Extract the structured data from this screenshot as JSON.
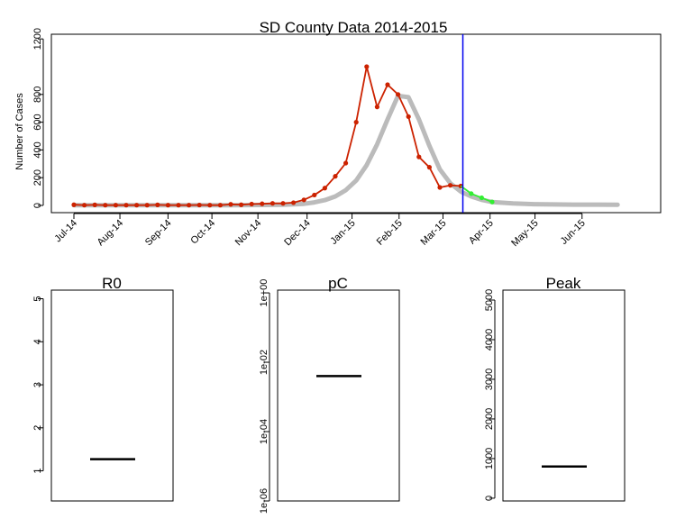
{
  "chart_data": [
    {
      "type": "line",
      "title": "SD County Data 2014-2015",
      "ylabel": "Number of Cases",
      "xlabel": "",
      "ylim": [
        0,
        1200
      ],
      "yticks": [
        0,
        200,
        400,
        600,
        800,
        1200
      ],
      "xticks": [
        "Jul-14",
        "Aug-14",
        "Sep-14",
        "Oct-14",
        "Nov-14",
        "Dec-14",
        "Jan-15",
        "Feb-15",
        "Mar-15",
        "Apr-15",
        "May-15",
        "Jun-15"
      ],
      "xtick_weeks": [
        0,
        4.4,
        9,
        13.2,
        17.6,
        22.3,
        26.6,
        31.1,
        35.3,
        39.8,
        44.1,
        48.6
      ],
      "current_week_marker": 37.2,
      "colors": {
        "observed": "#cc2200",
        "forecast": "#33ee33",
        "model": "#bbbbbb",
        "marker": "#0000ee"
      },
      "series": [
        {
          "name": "",
          "role": "observed",
          "values": [
            5,
            2,
            4,
            2,
            2,
            2,
            2,
            2,
            4,
            2,
            2,
            2,
            3,
            2,
            2,
            8,
            5,
            10,
            12,
            15,
            15,
            20,
            40,
            75,
            125,
            210,
            305,
            600,
            1000,
            710,
            870,
            800,
            640,
            350,
            275,
            130,
            145,
            140
          ]
        },
        {
          "name": "",
          "role": "forecast",
          "x": [
            37,
            38,
            39,
            40
          ],
          "values": [
            140,
            85,
            55,
            25
          ]
        },
        {
          "name": "",
          "role": "model",
          "x": [
            0,
            5,
            10,
            15,
            18,
            20,
            21,
            22,
            23,
            24,
            25,
            26,
            27,
            28,
            29,
            30,
            31,
            32,
            33,
            34,
            35,
            36,
            37,
            38,
            39,
            40,
            42,
            44,
            46,
            48,
            50,
            52
          ],
          "values": [
            2,
            2,
            2,
            2,
            3,
            5,
            8,
            12,
            22,
            38,
            65,
            110,
            180,
            290,
            440,
            620,
            790,
            780,
            620,
            430,
            260,
            160,
            100,
            65,
            40,
            25,
            14,
            9,
            7,
            6,
            6,
            5
          ]
        }
      ]
    },
    {
      "type": "box",
      "title": "R0",
      "ylim": [
        0.3,
        5.2
      ],
      "yticks": [
        "1",
        "2",
        "3",
        "4",
        "5"
      ],
      "median": 1.27
    },
    {
      "type": "box",
      "title": "pC",
      "log_scale": true,
      "ylim": [
        1e-06,
        1.2
      ],
      "yticks": [
        "1e-06",
        "1e-04",
        "1e-02",
        "1e+00"
      ],
      "median": 0.004
    },
    {
      "type": "box",
      "title": "Peak",
      "ylim": [
        -70,
        5250
      ],
      "yticks": [
        "0",
        "1000",
        "2000",
        "3000",
        "4000",
        "5000"
      ],
      "median": 800
    }
  ]
}
